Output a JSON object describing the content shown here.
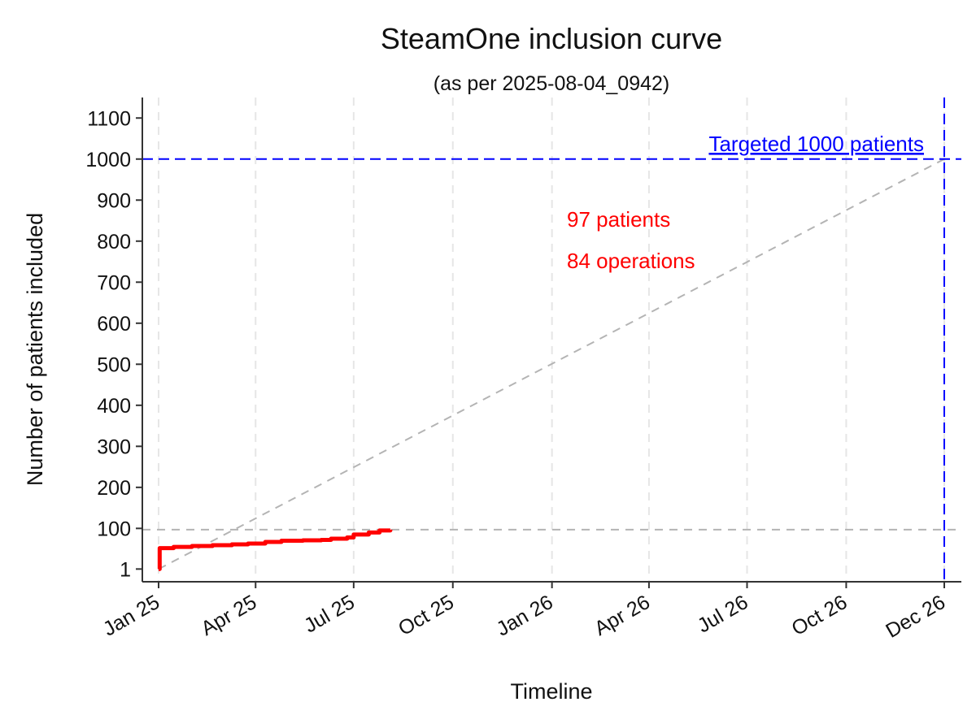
{
  "chart_data": {
    "type": "line",
    "title": "SteamOne inclusion curve",
    "subtitle": "(as per 2025-08-04_0942)",
    "xlabel": "Timeline",
    "ylabel": "Number of patients included",
    "x_domain": [
      "2025-01-01",
      "2026-12-31"
    ],
    "x_ticks": [
      {
        "date": "2025-01-01",
        "label": "Jan 25"
      },
      {
        "date": "2025-04-01",
        "label": "Apr 25"
      },
      {
        "date": "2025-07-01",
        "label": "Jul 25"
      },
      {
        "date": "2025-10-01",
        "label": "Oct 25"
      },
      {
        "date": "2026-01-01",
        "label": "Jan 26"
      },
      {
        "date": "2026-04-01",
        "label": "Apr 26"
      },
      {
        "date": "2026-07-01",
        "label": "Jul 26"
      },
      {
        "date": "2026-10-01",
        "label": "Oct 26"
      },
      {
        "date": "2026-12-31",
        "label": "Dec 26"
      }
    ],
    "ylim": [
      -30,
      1150
    ],
    "y_ticks": [
      1,
      100,
      200,
      300,
      400,
      500,
      600,
      700,
      800,
      900,
      1000,
      1100
    ],
    "grid": "vertical dashed",
    "series": [
      {
        "name": "Included patients",
        "color": "#ff0000",
        "points": [
          {
            "x": "2025-01-01",
            "y": 1
          },
          {
            "x": "2025-01-02",
            "y": 52
          },
          {
            "x": "2025-01-15",
            "y": 55
          },
          {
            "x": "2025-02-01",
            "y": 57
          },
          {
            "x": "2025-02-20",
            "y": 59
          },
          {
            "x": "2025-03-10",
            "y": 61
          },
          {
            "x": "2025-03-25",
            "y": 63
          },
          {
            "x": "2025-04-10",
            "y": 67
          },
          {
            "x": "2025-04-25",
            "y": 70
          },
          {
            "x": "2025-05-15",
            "y": 71
          },
          {
            "x": "2025-06-01",
            "y": 72
          },
          {
            "x": "2025-06-10",
            "y": 75
          },
          {
            "x": "2025-06-25",
            "y": 78
          },
          {
            "x": "2025-07-01",
            "y": 85
          },
          {
            "x": "2025-07-15",
            "y": 90
          },
          {
            "x": "2025-07-25",
            "y": 95
          },
          {
            "x": "2025-08-04",
            "y": 97
          }
        ]
      }
    ],
    "reference_lines": {
      "target_horizontal": {
        "y": 1000,
        "color": "#0000ff",
        "style": "dashed"
      },
      "end_vertical": {
        "x": "2026-12-31",
        "color": "#0000ff",
        "style": "dashed"
      },
      "current_horizontal": {
        "y": 97,
        "color": "#b4b4b4",
        "style": "dashed"
      },
      "projection": {
        "from": {
          "x": "2025-01-01",
          "y": 1
        },
        "to": {
          "x": "2026-12-31",
          "y": 1000
        },
        "color": "#b4b4b4",
        "style": "dashed"
      }
    },
    "annotations": {
      "patients": "97 patients",
      "operations": "84 operations",
      "target": "Targeted 1000 patients"
    }
  }
}
